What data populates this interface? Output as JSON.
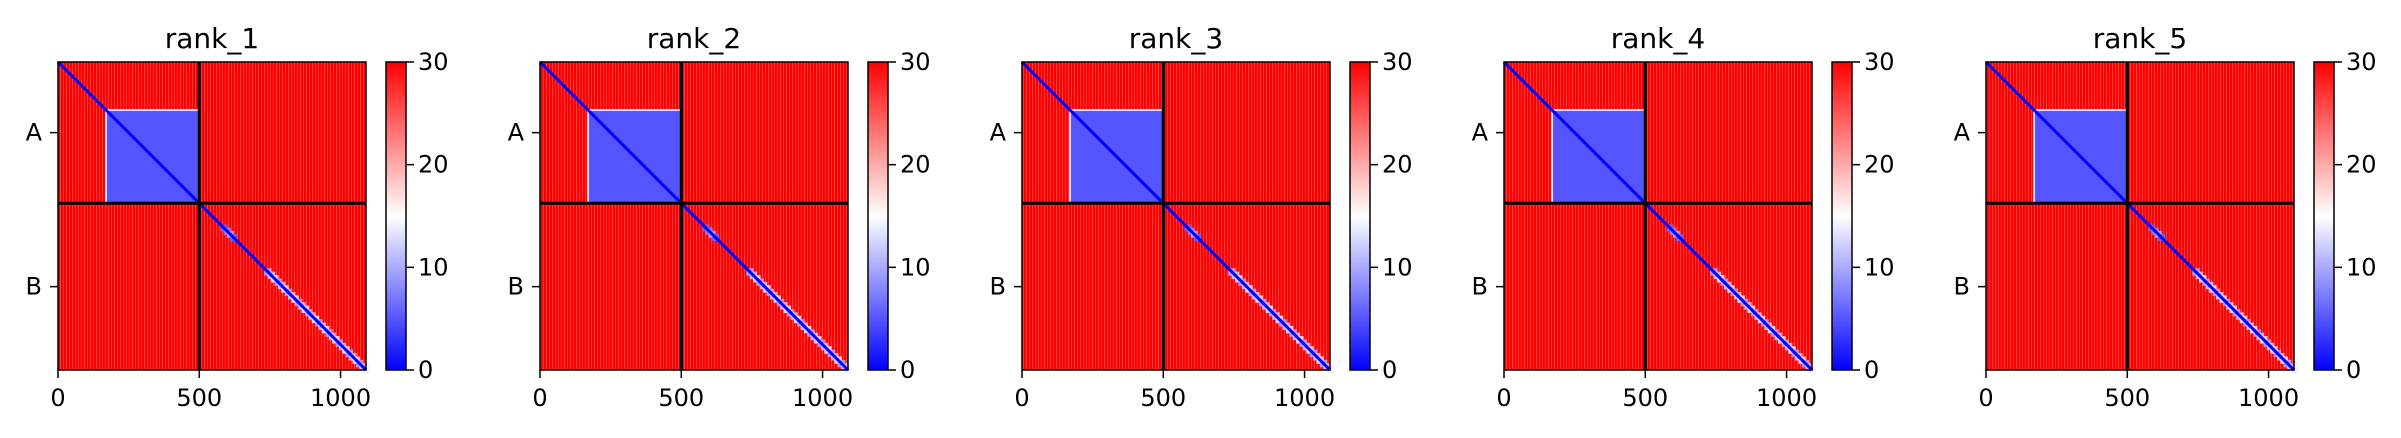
{
  "chart_data": [
    {
      "type": "heatmap",
      "title": "rank_1",
      "xticks": [
        0,
        500,
        1000
      ],
      "xlim": [
        0,
        1090
      ],
      "yticklabels": [
        "A",
        "B"
      ],
      "chain_break": 500,
      "colorbar": {
        "ticks": [
          0,
          10,
          20,
          30
        ],
        "range": [
          0,
          30
        ],
        "colormap": "bwr"
      },
      "low_blocks": [
        {
          "x": [
            170,
            500
          ],
          "y": [
            170,
            500
          ],
          "value": 5
        }
      ],
      "diagonal_blocks": [
        {
          "start": 575,
          "end": 620,
          "value": 6
        },
        {
          "start": 730,
          "end": 1090,
          "value": 10
        }
      ]
    },
    {
      "type": "heatmap",
      "title": "rank_2",
      "xticks": [
        0,
        500,
        1000
      ],
      "xlim": [
        0,
        1090
      ],
      "yticklabels": [
        "A",
        "B"
      ],
      "chain_break": 500,
      "colorbar": {
        "ticks": [
          0,
          10,
          20,
          30
        ],
        "range": [
          0,
          30
        ],
        "colormap": "bwr"
      },
      "low_blocks": [
        {
          "x": [
            170,
            500
          ],
          "y": [
            170,
            500
          ],
          "value": 5
        }
      ],
      "diagonal_blocks": [
        {
          "start": 575,
          "end": 620,
          "value": 6
        },
        {
          "start": 730,
          "end": 1090,
          "value": 10
        }
      ]
    },
    {
      "type": "heatmap",
      "title": "rank_3",
      "xticks": [
        0,
        500,
        1000
      ],
      "xlim": [
        0,
        1090
      ],
      "yticklabels": [
        "A",
        "B"
      ],
      "chain_break": 500,
      "colorbar": {
        "ticks": [
          0,
          10,
          20,
          30
        ],
        "range": [
          0,
          30
        ],
        "colormap": "bwr"
      },
      "low_blocks": [
        {
          "x": [
            170,
            500
          ],
          "y": [
            170,
            500
          ],
          "value": 5
        }
      ],
      "diagonal_blocks": [
        {
          "start": 575,
          "end": 620,
          "value": 6
        },
        {
          "start": 730,
          "end": 1090,
          "value": 10
        }
      ]
    },
    {
      "type": "heatmap",
      "title": "rank_4",
      "xticks": [
        0,
        500,
        1000
      ],
      "xlim": [
        0,
        1090
      ],
      "yticklabels": [
        "A",
        "B"
      ],
      "chain_break": 500,
      "colorbar": {
        "ticks": [
          0,
          10,
          20,
          30
        ],
        "range": [
          0,
          30
        ],
        "colormap": "bwr"
      },
      "low_blocks": [
        {
          "x": [
            170,
            500
          ],
          "y": [
            170,
            500
          ],
          "value": 5
        }
      ],
      "diagonal_blocks": [
        {
          "start": 575,
          "end": 620,
          "value": 6
        },
        {
          "start": 730,
          "end": 1090,
          "value": 10
        }
      ]
    },
    {
      "type": "heatmap",
      "title": "rank_5",
      "xticks": [
        0,
        500,
        1000
      ],
      "xlim": [
        0,
        1090
      ],
      "yticklabels": [
        "A",
        "B"
      ],
      "chain_break": 500,
      "colorbar": {
        "ticks": [
          0,
          10,
          20,
          30
        ],
        "range": [
          0,
          30
        ],
        "colormap": "bwr"
      },
      "low_blocks": [
        {
          "x": [
            170,
            500
          ],
          "y": [
            170,
            500
          ],
          "value": 5
        }
      ],
      "diagonal_blocks": [
        {
          "start": 575,
          "end": 620,
          "value": 6
        },
        {
          "start": 730,
          "end": 1090,
          "value": 10
        }
      ]
    }
  ],
  "colors": {
    "high": "#ff0000",
    "mid": "#ffffff",
    "low": "#0000ff",
    "boundary": "#000000"
  }
}
